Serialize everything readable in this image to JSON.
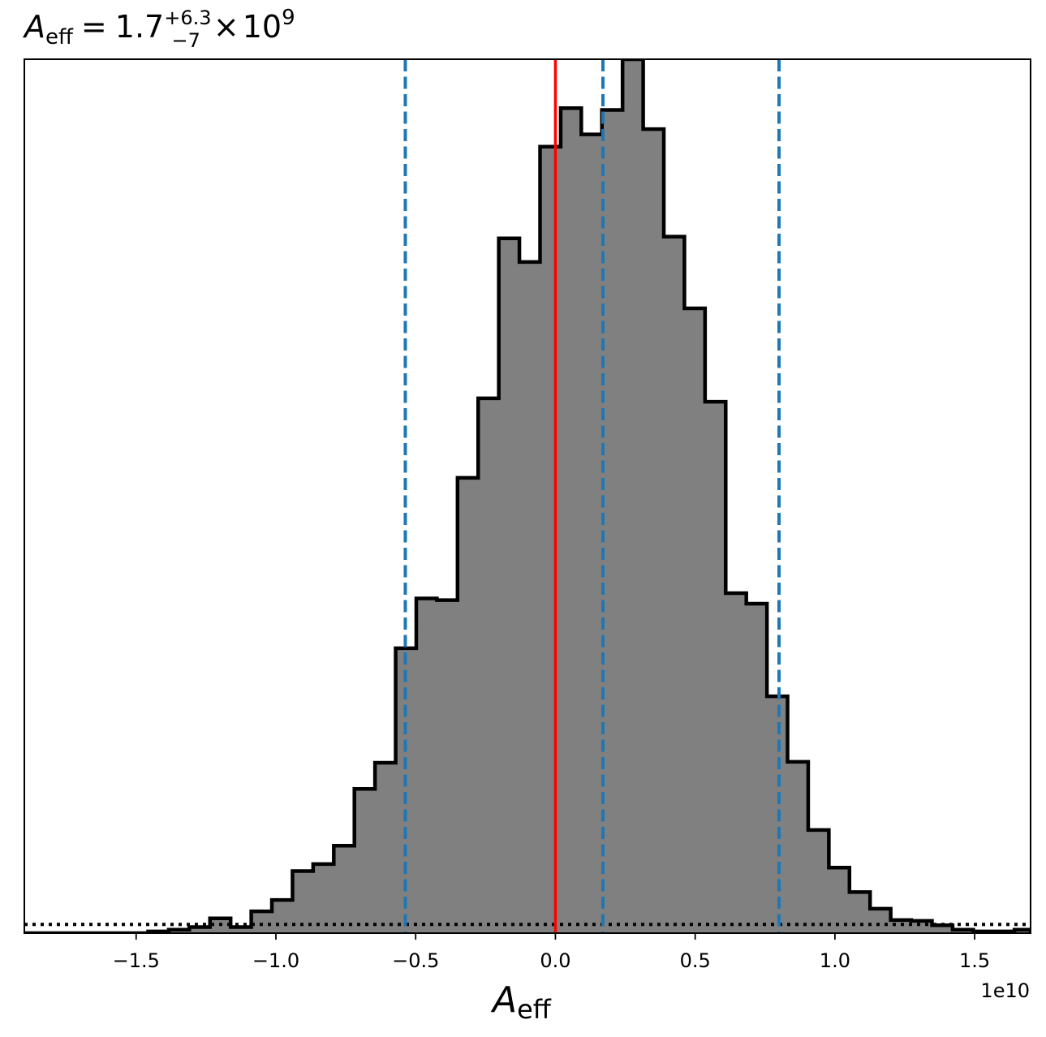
{
  "chart_data": {
    "type": "histogram",
    "title": {
      "symbol": "A",
      "subscript": "eff",
      "equals": "=",
      "median": "1.7",
      "upper_error": "+6.3",
      "lower_error": "−7",
      "times": "×",
      "scale_base": "10",
      "scale_exponent": "9"
    },
    "xlabel": {
      "symbol": "A",
      "subscript": "eff"
    },
    "x_offset_label": "1e10",
    "xlim": [
      -1.9,
      1.7
    ],
    "ylim": [
      0,
      1.0
    ],
    "x_ticks": [
      -1.5,
      -1.0,
      -0.5,
      0.0,
      0.5,
      1.0,
      1.5
    ],
    "x_tick_labels": [
      "−1.5",
      "−1.0",
      "−0.5",
      "0.0",
      "0.5",
      "1.0",
      "1.5"
    ],
    "y_ticks_visible": false,
    "bin_edges": [
      -1.9,
      -1.8262,
      -1.7524,
      -1.6786,
      -1.6048,
      -1.531,
      -1.4572,
      -1.3834,
      -1.3096,
      -1.2358,
      -1.162,
      -1.0882,
      -1.0144,
      -0.9406,
      -0.8668,
      -0.793,
      -0.7192,
      -0.6454,
      -0.5716,
      -0.4978,
      -0.424,
      -0.3502,
      -0.2764,
      -0.2026,
      -0.1288,
      -0.055,
      0.0188,
      0.0926,
      0.1664,
      0.2402,
      0.314,
      0.3878,
      0.4616,
      0.5354,
      0.6092,
      0.683,
      0.7568,
      0.8306,
      0.9044,
      0.9782,
      1.052,
      1.1258,
      1.1996,
      1.2734,
      1.3472,
      1.421,
      1.4948,
      1.5686,
      1.6424,
      1.7
    ],
    "bin_heights": [
      0.0,
      0.0,
      0.0,
      0.0,
      0.0,
      0.0,
      0.002,
      0.004,
      0.007,
      0.017,
      0.007,
      0.025,
      0.038,
      0.071,
      0.079,
      0.1,
      0.165,
      0.195,
      0.326,
      0.383,
      0.381,
      0.521,
      0.612,
      0.795,
      0.768,
      0.9,
      0.944,
      0.914,
      0.942,
      1.0,
      0.92,
      0.797,
      0.715,
      0.608,
      0.389,
      0.377,
      0.271,
      0.196,
      0.118,
      0.075,
      0.047,
      0.028,
      0.015,
      0.014,
      0.009,
      0.004,
      0.002,
      0.002,
      0.004
    ],
    "fill_color": "#808080",
    "edge_color": "#000000",
    "median_line": {
      "x": 0.0,
      "color": "#ff0000",
      "style": "solid"
    },
    "quantile_lines": {
      "x": [
        -0.537,
        0.17,
        0.8
      ],
      "color": "#1f77b4",
      "style": "dashed"
    },
    "baseline_line": {
      "y": 0.01,
      "color": "#000000",
      "style": "dotted"
    },
    "grid": false,
    "legend": "none"
  }
}
